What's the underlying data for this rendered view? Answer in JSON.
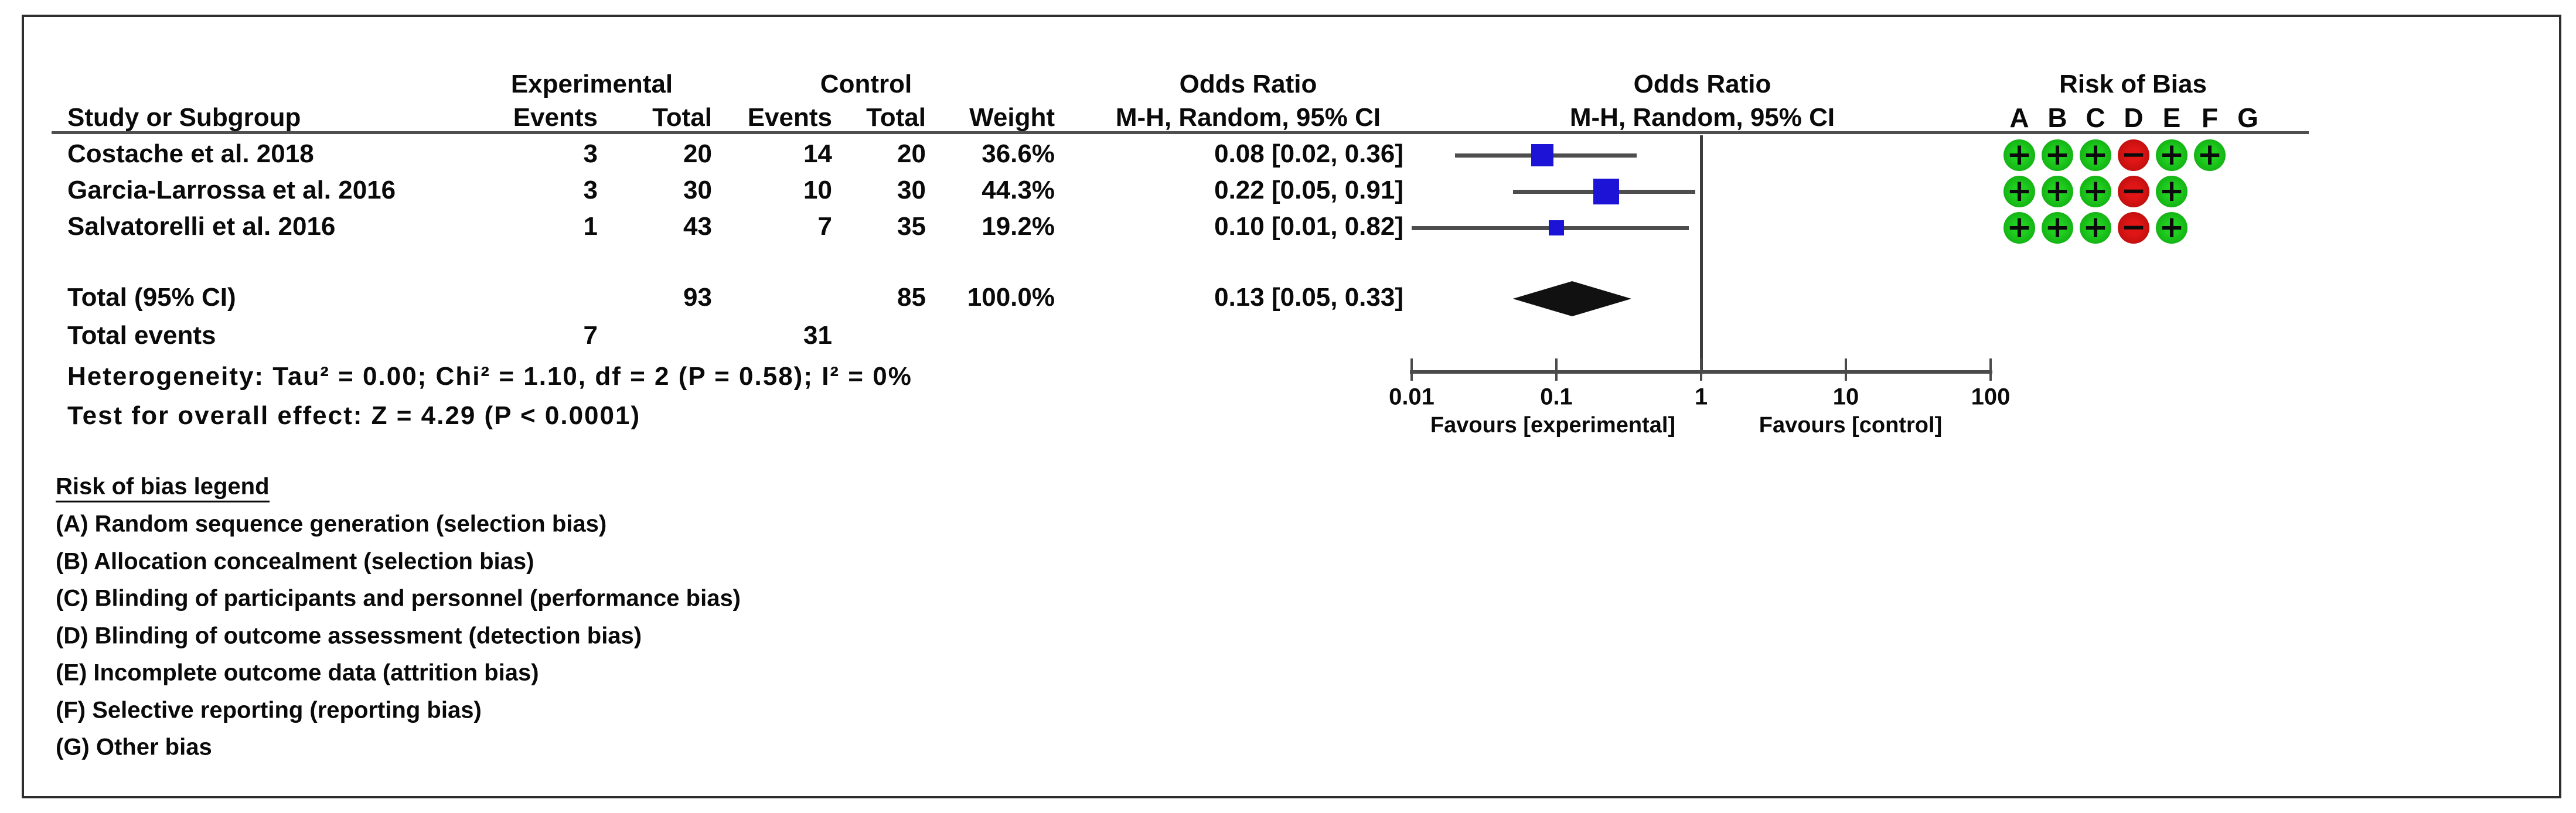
{
  "header": {
    "study_col": "Study or Subgroup",
    "group_experimental": "Experimental",
    "group_control": "Control",
    "events_col": "Events",
    "total_col": "Total",
    "weight_col": "Weight",
    "or_text_title": "Odds Ratio",
    "or_text_sub": "M-H, Random, 95% CI",
    "or_plot_title": "Odds Ratio",
    "or_plot_sub": "M-H, Random, 95% CI",
    "rob_title": "Risk of Bias",
    "rob_letters": [
      "A",
      "B",
      "C",
      "D",
      "E",
      "F",
      "G"
    ]
  },
  "studies": [
    {
      "name": "Costache et al. 2018",
      "exp_events": "3",
      "exp_total": "20",
      "ctrl_events": "14",
      "ctrl_total": "20",
      "weight": "36.6%",
      "weight_pct": 36.6,
      "or_ci": "0.08 [0.02, 0.36]",
      "or": 0.08,
      "ci_low": 0.02,
      "ci_high": 0.36,
      "rob": [
        "+",
        "+",
        "+",
        "-",
        "+",
        "+",
        null
      ]
    },
    {
      "name": "Garcia-Larrossa et al. 2016",
      "exp_events": "3",
      "exp_total": "30",
      "ctrl_events": "10",
      "ctrl_total": "30",
      "weight": "44.3%",
      "weight_pct": 44.3,
      "or_ci": "0.22 [0.05, 0.91]",
      "or": 0.22,
      "ci_low": 0.05,
      "ci_high": 0.91,
      "rob": [
        "+",
        "+",
        "+",
        "-",
        "+",
        null,
        null
      ]
    },
    {
      "name": "Salvatorelli et al. 2016",
      "exp_events": "1",
      "exp_total": "43",
      "ctrl_events": "7",
      "ctrl_total": "35",
      "weight": "19.2%",
      "weight_pct": 19.2,
      "or_ci": "0.10 [0.01, 0.82]",
      "or": 0.1,
      "ci_low": 0.01,
      "ci_high": 0.82,
      "rob": [
        "+",
        "+",
        "+",
        "-",
        "+",
        null,
        null
      ]
    }
  ],
  "totals": {
    "label": "Total (95% CI)",
    "exp_total": "93",
    "ctrl_total": "85",
    "weight": "100.0%",
    "or_ci": "0.13 [0.05, 0.33]",
    "or": 0.13,
    "ci_low": 0.05,
    "ci_high": 0.33,
    "events_label": "Total events",
    "exp_events": "7",
    "ctrl_events": "31",
    "heterogeneity": "Heterogeneity: Tau² = 0.00; Chi² = 1.10, df = 2 (P = 0.58); I² = 0%",
    "overall_effect": "Test for overall effect: Z = 4.29 (P < 0.0001)"
  },
  "axis": {
    "tick_labels": [
      "0.01",
      "0.1",
      "1",
      "10",
      "100"
    ],
    "tick_values": [
      0.01,
      0.1,
      1,
      10,
      100
    ],
    "left_label": "Favours [experimental]",
    "right_label": "Favours [control]"
  },
  "legend": {
    "title": "Risk of bias legend",
    "items": [
      "(A) Random sequence generation (selection bias)",
      "(B) Allocation concealment (selection bias)",
      "(C) Blinding of participants and personnel (performance bias)",
      "(D) Blinding of outcome assessment (detection bias)",
      "(E) Incomplete outcome data (attrition bias)",
      "(F) Selective reporting (reporting bias)",
      "(G) Other bias"
    ]
  },
  "colors": {
    "square_blue": "#1c13d6",
    "rob_green": "#15b415",
    "rob_red": "#cc1111",
    "line_gray": "#4d4d4d",
    "diamond_black": "#111111"
  },
  "chart_data": {
    "type": "scatter",
    "subtype": "forest-plot",
    "title": "Odds Ratio M-H, Random, 95% CI",
    "x_scale": "log10",
    "xlim": [
      0.01,
      100
    ],
    "x_ticks": [
      0.01,
      0.1,
      1,
      10,
      100
    ],
    "xlabel_left": "Favours [experimental]",
    "xlabel_right": "Favours [control]",
    "series": [
      {
        "name": "Costache et al. 2018",
        "or": 0.08,
        "ci": [
          0.02,
          0.36
        ],
        "weight_pct": 36.6,
        "exp_events": 3,
        "exp_total": 20,
        "ctrl_events": 14,
        "ctrl_total": 20,
        "risk_of_bias": {
          "A": "low",
          "B": "low",
          "C": "low",
          "D": "high",
          "E": "low",
          "F": "low",
          "G": null
        }
      },
      {
        "name": "Garcia-Larrossa et al. 2016",
        "or": 0.22,
        "ci": [
          0.05,
          0.91
        ],
        "weight_pct": 44.3,
        "exp_events": 3,
        "exp_total": 30,
        "ctrl_events": 10,
        "ctrl_total": 30,
        "risk_of_bias": {
          "A": "low",
          "B": "low",
          "C": "low",
          "D": "high",
          "E": "low",
          "F": null,
          "G": null
        }
      },
      {
        "name": "Salvatorelli et al. 2016",
        "or": 0.1,
        "ci": [
          0.01,
          0.82
        ],
        "weight_pct": 19.2,
        "exp_events": 1,
        "exp_total": 43,
        "ctrl_events": 7,
        "ctrl_total": 35,
        "risk_of_bias": {
          "A": "low",
          "B": "low",
          "C": "low",
          "D": "high",
          "E": "low",
          "F": null,
          "G": null
        }
      }
    ],
    "total": {
      "name": "Total (95% CI)",
      "or": 0.13,
      "ci": [
        0.05,
        0.33
      ],
      "weight_pct": 100.0,
      "exp_total": 93,
      "ctrl_total": 85,
      "exp_events": 7,
      "ctrl_events": 31,
      "heterogeneity": "Tau² = 0.00; Chi² = 1.10, df = 2 (P = 0.58); I² = 0%",
      "overall_effect": "Z = 4.29 (P < 0.0001)"
    }
  }
}
